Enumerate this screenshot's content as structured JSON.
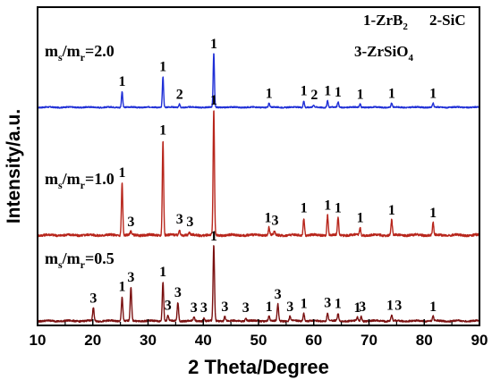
{
  "chart_data": {
    "type": "line",
    "xlabel": "2 Theta/Degree",
    "ylabel": "Intensity/a.u.",
    "xlim": [
      10,
      90
    ],
    "x_ticks": [
      "10",
      "20",
      "30",
      "40",
      "50",
      "60",
      "70",
      "80",
      "90"
    ],
    "legend_lines": [
      {
        "number": "1",
        "formula": "ZrB",
        "sub": "2"
      },
      {
        "number": "2",
        "formula": "SiC",
        "sub": ""
      },
      {
        "number": "3",
        "formula": "ZrSiO",
        "sub": "4"
      }
    ],
    "series": [
      {
        "label": "m_s/m_r=2.0",
        "label_main": "m",
        "label_sub1": "s",
        "label_mid": "/m",
        "label_sub2": "r",
        "label_value": "=2.0",
        "color": "#1f2fd6",
        "peaks": [
          {
            "x": 25.3,
            "h": 0.24
          },
          {
            "x": 32.7,
            "h": 0.46
          },
          {
            "x": 35.7,
            "h": 0.05
          },
          {
            "x": 41.9,
            "h": 0.8
          },
          {
            "x": 51.9,
            "h": 0.06
          },
          {
            "x": 58.2,
            "h": 0.1
          },
          {
            "x": 60.0,
            "h": 0.03
          },
          {
            "x": 62.5,
            "h": 0.1
          },
          {
            "x": 64.4,
            "h": 0.08
          },
          {
            "x": 68.4,
            "h": 0.05
          },
          {
            "x": 74.1,
            "h": 0.06
          },
          {
            "x": 81.6,
            "h": 0.06
          }
        ],
        "annotations": [
          {
            "text": "1",
            "x": 25.3,
            "h": 0.24
          },
          {
            "text": "1",
            "x": 32.7,
            "h": 0.46
          },
          {
            "text": "2",
            "x": 35.7,
            "h": 0.05
          },
          {
            "text": "1",
            "x": 41.9,
            "h": 0.8
          },
          {
            "text": "1",
            "x": 51.9,
            "h": 0.06
          },
          {
            "text": "1",
            "x": 58.2,
            "h": 0.1
          },
          {
            "text": "2",
            "x": 60.1,
            "h": 0.04
          },
          {
            "text": "1",
            "x": 62.5,
            "h": 0.1
          },
          {
            "text": "1",
            "x": 64.4,
            "h": 0.08
          },
          {
            "text": "1",
            "x": 68.4,
            "h": 0.05
          },
          {
            "text": "1",
            "x": 74.1,
            "h": 0.06
          },
          {
            "text": "1",
            "x": 81.6,
            "h": 0.06
          }
        ]
      },
      {
        "label": "m_s/m_r=1.0",
        "label_main": "m",
        "label_sub1": "s",
        "label_mid": "/m",
        "label_sub2": "r",
        "label_value": "=1.0",
        "color": "#b8261c",
        "peaks": [
          {
            "x": 25.3,
            "h": 0.42
          },
          {
            "x": 26.9,
            "h": 0.03
          },
          {
            "x": 32.7,
            "h": 0.76
          },
          {
            "x": 35.7,
            "h": 0.05
          },
          {
            "x": 37.5,
            "h": 0.02
          },
          {
            "x": 41.9,
            "h": 1.0
          },
          {
            "x": 51.9,
            "h": 0.06
          },
          {
            "x": 52.9,
            "h": 0.03
          },
          {
            "x": 58.2,
            "h": 0.14
          },
          {
            "x": 62.5,
            "h": 0.16
          },
          {
            "x": 64.4,
            "h": 0.14
          },
          {
            "x": 68.4,
            "h": 0.06
          },
          {
            "x": 74.1,
            "h": 0.12
          },
          {
            "x": 81.6,
            "h": 0.1
          }
        ],
        "annotations": [
          {
            "text": "1",
            "x": 25.3,
            "h": 0.42
          },
          {
            "text": "3",
            "x": 26.9,
            "h": 0.03
          },
          {
            "text": "1",
            "x": 32.7,
            "h": 0.76
          },
          {
            "text": "3",
            "x": 35.7,
            "h": 0.05
          },
          {
            "text": "3",
            "x": 37.6,
            "h": 0.03
          },
          {
            "text": "1",
            "x": 41.9,
            "h": 1.0
          },
          {
            "text": "1",
            "x": 51.7,
            "h": 0.06
          },
          {
            "text": "3",
            "x": 53.0,
            "h": 0.04
          },
          {
            "text": "1",
            "x": 58.2,
            "h": 0.14
          },
          {
            "text": "1",
            "x": 62.5,
            "h": 0.16
          },
          {
            "text": "1",
            "x": 64.4,
            "h": 0.14
          },
          {
            "text": "1",
            "x": 68.4,
            "h": 0.06
          },
          {
            "text": "1",
            "x": 74.1,
            "h": 0.12
          },
          {
            "text": "1",
            "x": 81.6,
            "h": 0.1
          }
        ]
      },
      {
        "label": "m_s/m_r=0.5",
        "label_main": "m",
        "label_sub1": "s",
        "label_mid": "/m",
        "label_sub2": "r",
        "label_value": "=0.5",
        "color": "#7a1010",
        "peaks": [
          {
            "x": 20.1,
            "h": 0.14
          },
          {
            "x": 25.3,
            "h": 0.26
          },
          {
            "x": 26.9,
            "h": 0.36
          },
          {
            "x": 32.7,
            "h": 0.42
          },
          {
            "x": 33.6,
            "h": 0.06
          },
          {
            "x": 35.4,
            "h": 0.2
          },
          {
            "x": 38.3,
            "h": 0.04
          },
          {
            "x": 40.1,
            "h": 0.03
          },
          {
            "x": 41.9,
            "h": 0.8
          },
          {
            "x": 43.9,
            "h": 0.05
          },
          {
            "x": 47.7,
            "h": 0.03
          },
          {
            "x": 51.9,
            "h": 0.05
          },
          {
            "x": 53.5,
            "h": 0.18
          },
          {
            "x": 55.7,
            "h": 0.05
          },
          {
            "x": 58.2,
            "h": 0.08
          },
          {
            "x": 62.5,
            "h": 0.09
          },
          {
            "x": 64.4,
            "h": 0.08
          },
          {
            "x": 67.9,
            "h": 0.04
          },
          {
            "x": 68.6,
            "h": 0.05
          },
          {
            "x": 74.1,
            "h": 0.06
          },
          {
            "x": 81.6,
            "h": 0.05
          }
        ],
        "annotations": [
          {
            "text": "3",
            "x": 20.1,
            "h": 0.14
          },
          {
            "text": "1",
            "x": 25.3,
            "h": 0.26
          },
          {
            "text": "3",
            "x": 26.9,
            "h": 0.36
          },
          {
            "text": "1",
            "x": 32.7,
            "h": 0.42
          },
          {
            "text": "3",
            "x": 33.6,
            "h": 0.06
          },
          {
            "text": "3",
            "x": 35.4,
            "h": 0.2
          },
          {
            "text": "3",
            "x": 38.3,
            "h": 0.04
          },
          {
            "text": "3",
            "x": 40.1,
            "h": 0.04
          },
          {
            "text": "1",
            "x": 41.9,
            "h": 0.8
          },
          {
            "text": "3",
            "x": 43.9,
            "h": 0.05
          },
          {
            "text": "3",
            "x": 47.7,
            "h": 0.04
          },
          {
            "text": "1",
            "x": 51.9,
            "h": 0.05
          },
          {
            "text": "3",
            "x": 53.5,
            "h": 0.18
          },
          {
            "text": "3",
            "x": 55.7,
            "h": 0.05
          },
          {
            "text": "1",
            "x": 58.2,
            "h": 0.08
          },
          {
            "text": "3",
            "x": 62.5,
            "h": 0.09
          },
          {
            "text": "1",
            "x": 64.4,
            "h": 0.08
          },
          {
            "text": "1",
            "x": 67.9,
            "h": 0.04
          },
          {
            "text": "3",
            "x": 68.8,
            "h": 0.05
          },
          {
            "text": "1",
            "x": 73.8,
            "h": 0.06
          },
          {
            "text": "3",
            "x": 75.3,
            "h": 0.06
          },
          {
            "text": "1",
            "x": 81.6,
            "h": 0.05
          }
        ]
      }
    ]
  }
}
